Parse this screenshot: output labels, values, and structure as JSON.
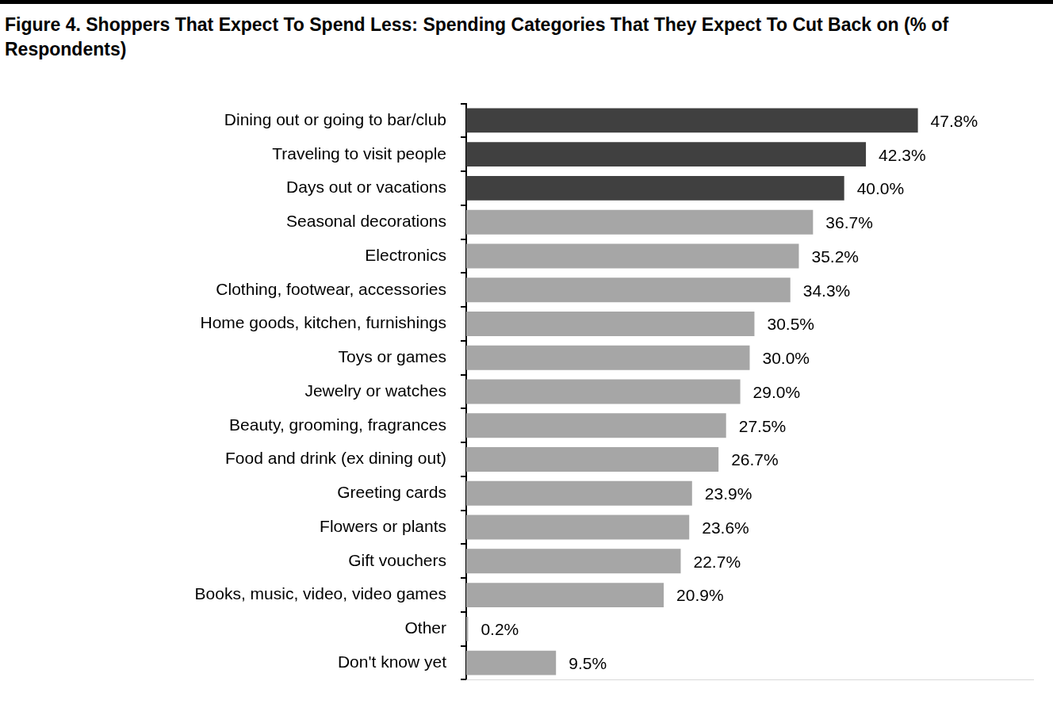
{
  "chart_data": {
    "type": "bar",
    "orientation": "horizontal",
    "title": "Figure 4. Shoppers That Expect To Spend Less: Spending Categories That They Expect To Cut Back on (% of Respondents)",
    "categories": [
      "Dining out or going to bar/club",
      "Traveling to visit people",
      "Days out or vacations",
      "Seasonal decorations",
      "Electronics",
      "Clothing, footwear, accessories",
      "Home goods, kitchen, furnishings",
      "Toys or games",
      "Jewelry or watches",
      "Beauty, grooming, fragrances",
      "Food and drink (ex dining out)",
      "Greeting cards",
      "Flowers or plants",
      "Gift vouchers",
      "Books, music, video, video games",
      "Other",
      "Don't know yet"
    ],
    "values": [
      47.8,
      42.3,
      40.0,
      36.7,
      35.2,
      34.3,
      30.5,
      30.0,
      29.0,
      27.5,
      26.7,
      23.9,
      23.6,
      22.7,
      20.9,
      0.2,
      9.5
    ],
    "value_labels": [
      "47.8%",
      "42.3%",
      "40.0%",
      "36.7%",
      "35.2%",
      "34.3%",
      "30.5%",
      "30.0%",
      "29.0%",
      "27.5%",
      "26.7%",
      "23.9%",
      "23.6%",
      "22.7%",
      "20.9%",
      "0.2%",
      "9.5%"
    ],
    "colors": [
      "#404040",
      "#404040",
      "#404040",
      "#a6a6a6",
      "#a6a6a6",
      "#a6a6a6",
      "#a6a6a6",
      "#a6a6a6",
      "#a6a6a6",
      "#a6a6a6",
      "#a6a6a6",
      "#a6a6a6",
      "#a6a6a6",
      "#a6a6a6",
      "#a6a6a6",
      "#a6a6a6",
      "#a6a6a6"
    ],
    "xlim": [
      0,
      60
    ],
    "data_labels": true,
    "tick_labels": "y",
    "grid": false
  }
}
